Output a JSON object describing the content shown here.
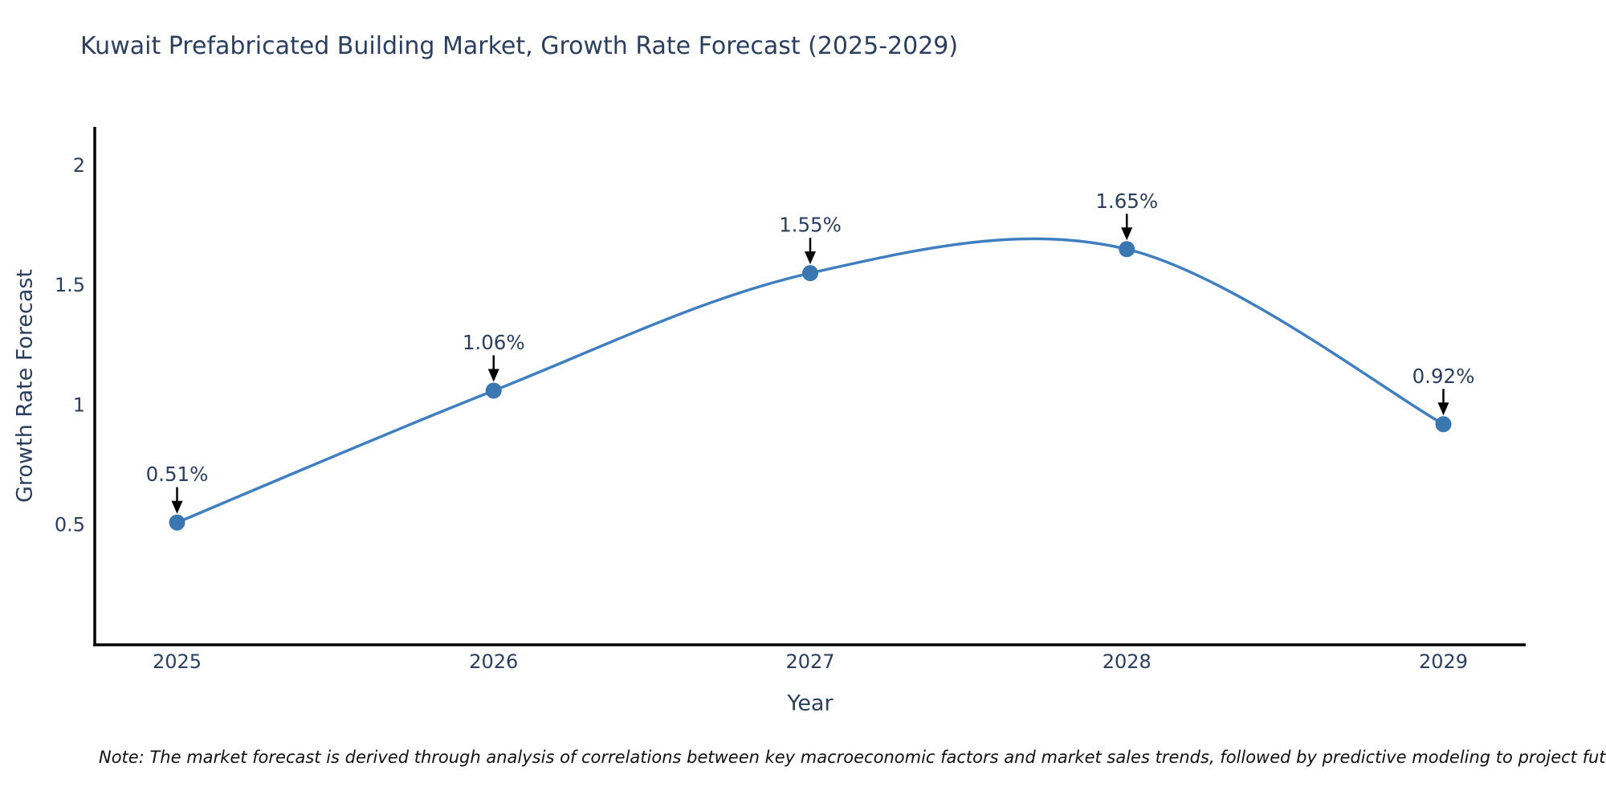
{
  "page": {
    "title": "Kuwait Prefabricated Building Market, Growth Rate Forecast (2025-2029)",
    "footnote": "Note: The market forecast is derived through analysis of correlations between key macroeconomic factors and market sales trends, followed by predictive modeling to project future sales"
  },
  "chart_data": {
    "type": "line",
    "line_shape": "spline",
    "title": "Kuwait Prefabricated Building Market, Growth Rate Forecast (2025-2029)",
    "xlabel": "Year",
    "ylabel": "Growth Rate Forecast",
    "x": [
      2025,
      2026,
      2027,
      2028,
      2029
    ],
    "x_tick_labels": [
      "2025",
      "2026",
      "2027",
      "2028",
      "2029"
    ],
    "series": [
      {
        "name": "Growth Rate Forecast",
        "values": [
          0.51,
          1.06,
          1.55,
          1.65,
          0.92
        ]
      }
    ],
    "point_labels": [
      "0.51%",
      "1.06%",
      "1.55%",
      "1.65%",
      "0.92%"
    ],
    "yticks": [
      0.5,
      1,
      1.5,
      2
    ],
    "ytick_labels": [
      "0.5",
      "1",
      "1.5",
      "2"
    ],
    "xlim": [
      2024.74,
      2029.26
    ],
    "ylim": [
      0,
      2.16
    ],
    "grid": false,
    "legend": "none",
    "markers": true,
    "colors": {
      "line": "#3f7fbf",
      "marker": "#3a76b0",
      "arrow": "#000000",
      "text": "#2a3f5f",
      "axis_line": "#000000",
      "note_text": "#111111"
    }
  }
}
